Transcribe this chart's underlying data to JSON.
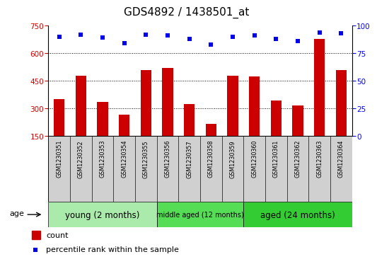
{
  "title": "GDS4892 / 1438501_at",
  "samples": [
    "GSM1230351",
    "GSM1230352",
    "GSM1230353",
    "GSM1230354",
    "GSM1230355",
    "GSM1230356",
    "GSM1230357",
    "GSM1230358",
    "GSM1230359",
    "GSM1230360",
    "GSM1230361",
    "GSM1230362",
    "GSM1230363",
    "GSM1230364"
  ],
  "counts": [
    350,
    480,
    335,
    268,
    510,
    520,
    325,
    215,
    480,
    475,
    345,
    318,
    680,
    510
  ],
  "percentiles": [
    90,
    92,
    89,
    84,
    92,
    91,
    88,
    83,
    90,
    91,
    88,
    86,
    94,
    93
  ],
  "groups": [
    {
      "label": "young (2 months)",
      "start": 0,
      "end": 5,
      "color": "#AAEAAA"
    },
    {
      "label": "middle aged (12 months)",
      "start": 5,
      "end": 9,
      "color": "#55DD55"
    },
    {
      "label": "aged (24 months)",
      "start": 9,
      "end": 14,
      "color": "#33CC33"
    }
  ],
  "ylim_left": [
    150,
    750
  ],
  "ylim_right": [
    0,
    100
  ],
  "yticks_left": [
    150,
    300,
    450,
    600,
    750
  ],
  "yticks_right": [
    0,
    25,
    50,
    75,
    100
  ],
  "bar_color": "#CC0000",
  "dot_color": "#0000EE",
  "bg_color": "#FFFFFF",
  "label_bg_color": "#D0D0D0",
  "title_fontsize": 11,
  "legend_labels": [
    "count",
    "percentile rank within the sample"
  ],
  "age_label": "age"
}
